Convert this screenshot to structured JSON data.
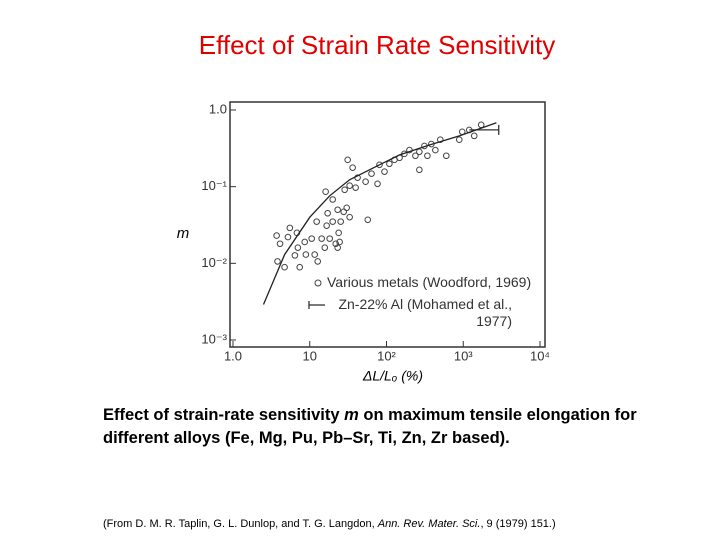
{
  "title": "Effect of Strain Rate Sensitivity",
  "caption": [
    "Effect of strain-rate sensitivity ",
    "m",
    " on maximum tensile elongation for different alloys (Fe, Mg, Pu, Pb–Sr, Ti, Zn, Zr based)."
  ],
  "reference": [
    "(From D. M. R. Taplin, G. L. Dunlop, and T. G. Langdon, ",
    "Ann. Rev. Mater. Sci.",
    ", 9 (1979) 151.)"
  ],
  "chart_data": {
    "type": "scatter",
    "x_label": "ΔL/Lₒ (%)",
    "y_label": "m",
    "xscale": "log",
    "yscale": "log",
    "xlim": [
      1,
      10000
    ],
    "ylim": [
      0.001,
      1
    ],
    "xticks": [
      {
        "value": 1,
        "label": "1.0"
      },
      10,
      {
        "value": 100,
        "label": "10²"
      },
      {
        "value": 1000,
        "label": "10³"
      },
      {
        "value": 10000,
        "label": "10⁴"
      }
    ],
    "yticks": [
      {
        "value": 0.001,
        "label": "10⁻³"
      },
      {
        "value": 0.01,
        "label": "10⁻²"
      },
      {
        "value": 0.1,
        "label": "10⁻¹"
      },
      {
        "value": 1,
        "label": "1.0"
      }
    ],
    "series": [
      {
        "name": "Various metals (Woodford, 1969)",
        "style": "circle",
        "color": "#444444",
        "x": [
          3.7,
          4.1,
          3.8,
          5.2,
          4.7,
          6.4,
          6.8,
          5.5,
          7.0,
          8.6,
          10.6,
          12.3,
          14.3,
          16.6,
          17.1,
          19.9,
          21.8,
          23.8,
          25.3,
          27.7,
          30.3,
          33.1,
          12.7,
          15.7,
          18.2,
          23.1,
          24.5,
          19.9,
          28.5,
          33.1,
          39.6,
          36.2,
          42.0,
          53.4,
          63.8,
          76.4,
          94.2,
          109,
          127,
          148,
          171,
          199,
          238,
          268,
          312,
          341,
          384,
          433,
          502,
          601,
          887,
          970,
          1197,
          1390,
          1714,
          268,
          81,
          57,
          16.1,
          31.2,
          23.1,
          8.9,
          7.4,
          11.6
        ],
        "values": [
          0.023,
          0.018,
          0.0106,
          0.022,
          0.0089,
          0.0127,
          0.025,
          0.029,
          0.016,
          0.019,
          0.021,
          0.035,
          0.021,
          0.031,
          0.045,
          0.035,
          0.018,
          0.025,
          0.035,
          0.047,
          0.053,
          0.04,
          0.0106,
          0.016,
          0.021,
          0.016,
          0.019,
          0.068,
          0.091,
          0.103,
          0.097,
          0.177,
          0.131,
          0.116,
          0.148,
          0.109,
          0.157,
          0.199,
          0.224,
          0.238,
          0.268,
          0.3,
          0.253,
          0.285,
          0.34,
          0.253,
          0.36,
          0.3,
          0.41,
          0.253,
          0.41,
          0.52,
          0.55,
          0.46,
          0.64,
          0.166,
          0.193,
          0.037,
          0.086,
          0.224,
          0.05,
          0.013,
          0.0089,
          0.013
        ]
      },
      {
        "name": "Zn-22% Al (Mohamed et al., 1977)",
        "style": "range",
        "color": "#333333",
        "x": [
          1200,
          2900
        ],
        "values": [
          0.55,
          0.55
        ]
      },
      {
        "style": "line",
        "color": "#222222",
        "x": [
          2.5,
          4.7,
          10,
          18.2,
          33.1,
          81,
          148,
          362,
          887,
          2700
        ],
        "values": [
          0.0029,
          0.013,
          0.04,
          0.076,
          0.123,
          0.193,
          0.26,
          0.35,
          0.46,
          0.68
        ]
      }
    ]
  }
}
